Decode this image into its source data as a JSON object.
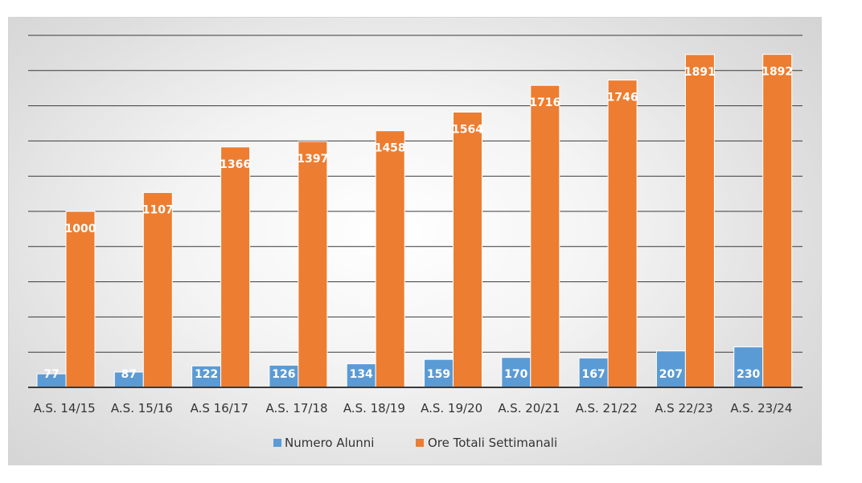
{
  "chart_data": {
    "type": "bar",
    "title": "",
    "xlabel": "",
    "ylabel": "",
    "categories": [
      "A.S. 14/15",
      "A.S. 15/16",
      "A.S 16/17",
      "A.S. 17/18",
      "A.S. 18/19",
      "A.S. 19/20",
      "A.S. 20/21",
      "A.S. 21/22",
      "A.S 22/23",
      "A.S. 23/24"
    ],
    "series": [
      {
        "name": "Numero Alunni",
        "color": "#5b9bd5",
        "values": [
          77,
          87,
          122,
          126,
          134,
          159,
          170,
          167,
          207,
          230
        ]
      },
      {
        "name": "Ore Totali Settimanali",
        "color": "#ed7d31",
        "values": [
          1000,
          1107,
          1366,
          1397,
          1458,
          1564,
          1716,
          1746,
          1891,
          1892
        ]
      }
    ],
    "ylim": [
      0,
      2000
    ],
    "ygrid_step": 200,
    "grid": true,
    "legend_position": "bottom"
  }
}
